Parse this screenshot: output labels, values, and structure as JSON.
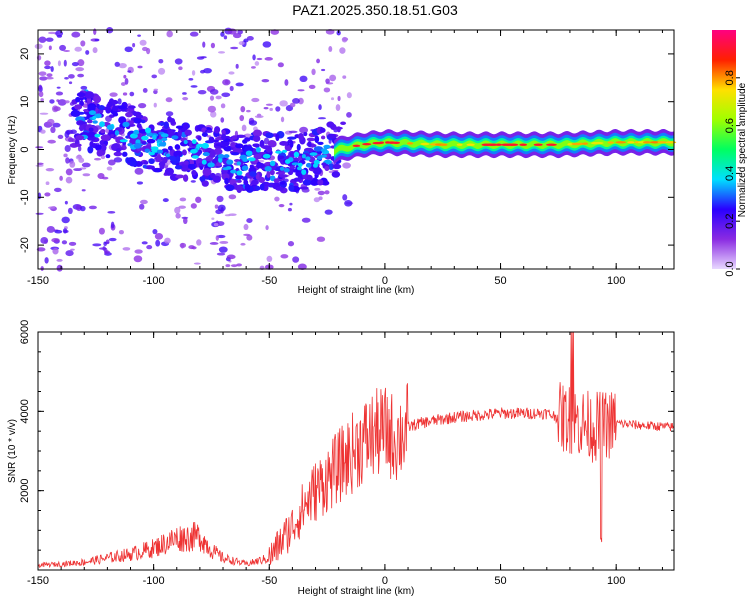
{
  "title": "PAZ1.2025.350.18.51.G03",
  "chart_data": [
    {
      "type": "heatmap",
      "name": "spectrogram",
      "xlabel": "Height of straight line (km)",
      "ylabel": "Frequency (Hz)",
      "xlim": [
        -150,
        125
      ],
      "ylim": [
        -25,
        25
      ],
      "x_ticks": [
        -150,
        -100,
        -50,
        0,
        50,
        100
      ],
      "y_ticks": [
        -20,
        -10,
        0,
        10,
        20
      ],
      "grid": false,
      "dominant_ridge": {
        "description": "spectral peak frequency vs height",
        "x": [
          -130,
          -120,
          -110,
          -100,
          -90,
          -80,
          -70,
          -60,
          -50,
          -40,
          -30,
          -20,
          -10,
          0,
          25,
          50,
          75,
          100,
          125
        ],
        "y": [
          6,
          4.5,
          3,
          1.5,
          0,
          -1,
          -2,
          -3,
          -2,
          -3,
          -2,
          0,
          1,
          1.5,
          1,
          1,
          1,
          1.5,
          1.5
        ]
      },
      "colorbar": {
        "label": "Normalized spectral amplitude",
        "range": [
          0.0,
          1.0
        ],
        "ticks": [
          "0.0",
          "0.2",
          "0.4",
          "0.6",
          "0.8"
        ],
        "colors": [
          "#e8d8ff",
          "#8a2be2",
          "#2a00ff",
          "#00e0ff",
          "#00ff60",
          "#a0ff00",
          "#ffe000",
          "#ff2000",
          "#ff0080"
        ]
      }
    },
    {
      "type": "line",
      "name": "snr",
      "xlabel": "Height of straight line (km)",
      "ylabel": "SNR (10 * v/v)",
      "xlim": [
        -150,
        125
      ],
      "ylim": [
        0,
        6000
      ],
      "x_ticks": [
        -150,
        -100,
        -50,
        0,
        50,
        100
      ],
      "y_ticks": [
        2000,
        4000,
        6000
      ],
      "grid": false,
      "color": "#ee3333",
      "series": [
        {
          "name": "SNR",
          "x": [
            -150,
            -140,
            -130,
            -120,
            -110,
            -100,
            -90,
            -80,
            -75,
            -70,
            -60,
            -50,
            -45,
            -40,
            -35,
            -30,
            -25,
            -20,
            -15,
            -10,
            -5,
            0,
            5,
            10,
            15,
            20,
            25,
            30,
            40,
            50,
            60,
            70,
            75,
            80,
            85,
            90,
            95,
            100,
            110,
            125
          ],
          "y": [
            120,
            150,
            200,
            300,
            400,
            550,
            800,
            850,
            500,
            300,
            150,
            300,
            700,
            1100,
            1600,
            2000,
            2300,
            2600,
            2900,
            3200,
            3400,
            3500,
            3300,
            3600,
            3700,
            3750,
            3800,
            3850,
            3900,
            3950,
            3950,
            3950,
            3850,
            3800,
            3700,
            3600,
            3650,
            3700,
            3650,
            3600
          ]
        }
      ]
    }
  ]
}
